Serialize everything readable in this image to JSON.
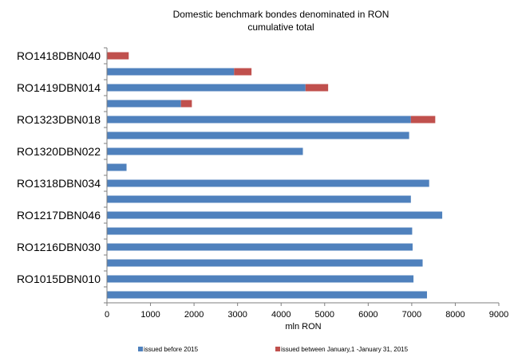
{
  "chart_data": {
    "type": "bar",
    "orientation": "horizontal",
    "stacked": true,
    "title": "Domestic benchmark bondes denominated in RON",
    "subtitle": "cumulative total",
    "xlabel": "mln RON",
    "ylabel": "",
    "xlim": [
      0,
      9000
    ],
    "x_ticks": [
      0,
      1000,
      2000,
      3000,
      4000,
      5000,
      6000,
      7000,
      8000,
      9000
    ],
    "grid": false,
    "legend_position": "bottom",
    "categories": [
      "RO1418DBN040",
      "",
      "RO1419DBN014",
      "",
      "RO1323DBN018",
      "",
      "RO1320DBN022",
      "",
      "RO1318DBN034",
      "",
      "RO1217DBN046",
      "",
      "RO1216DBN030",
      "",
      "RO1015DBN010",
      ""
    ],
    "series": [
      {
        "name": "issued before 2015",
        "color": "#4f81bd",
        "values": [
          0,
          2920,
          4560,
          1700,
          6980,
          6940,
          4500,
          450,
          7400,
          6980,
          7700,
          7010,
          7020,
          7250,
          7040,
          7350
        ]
      },
      {
        "name": "issued between January,1 -January 31, 2015",
        "color": "#c0504d",
        "values": [
          500,
          400,
          520,
          250,
          560,
          0,
          0,
          0,
          0,
          0,
          0,
          0,
          0,
          0,
          0,
          0
        ]
      }
    ]
  }
}
